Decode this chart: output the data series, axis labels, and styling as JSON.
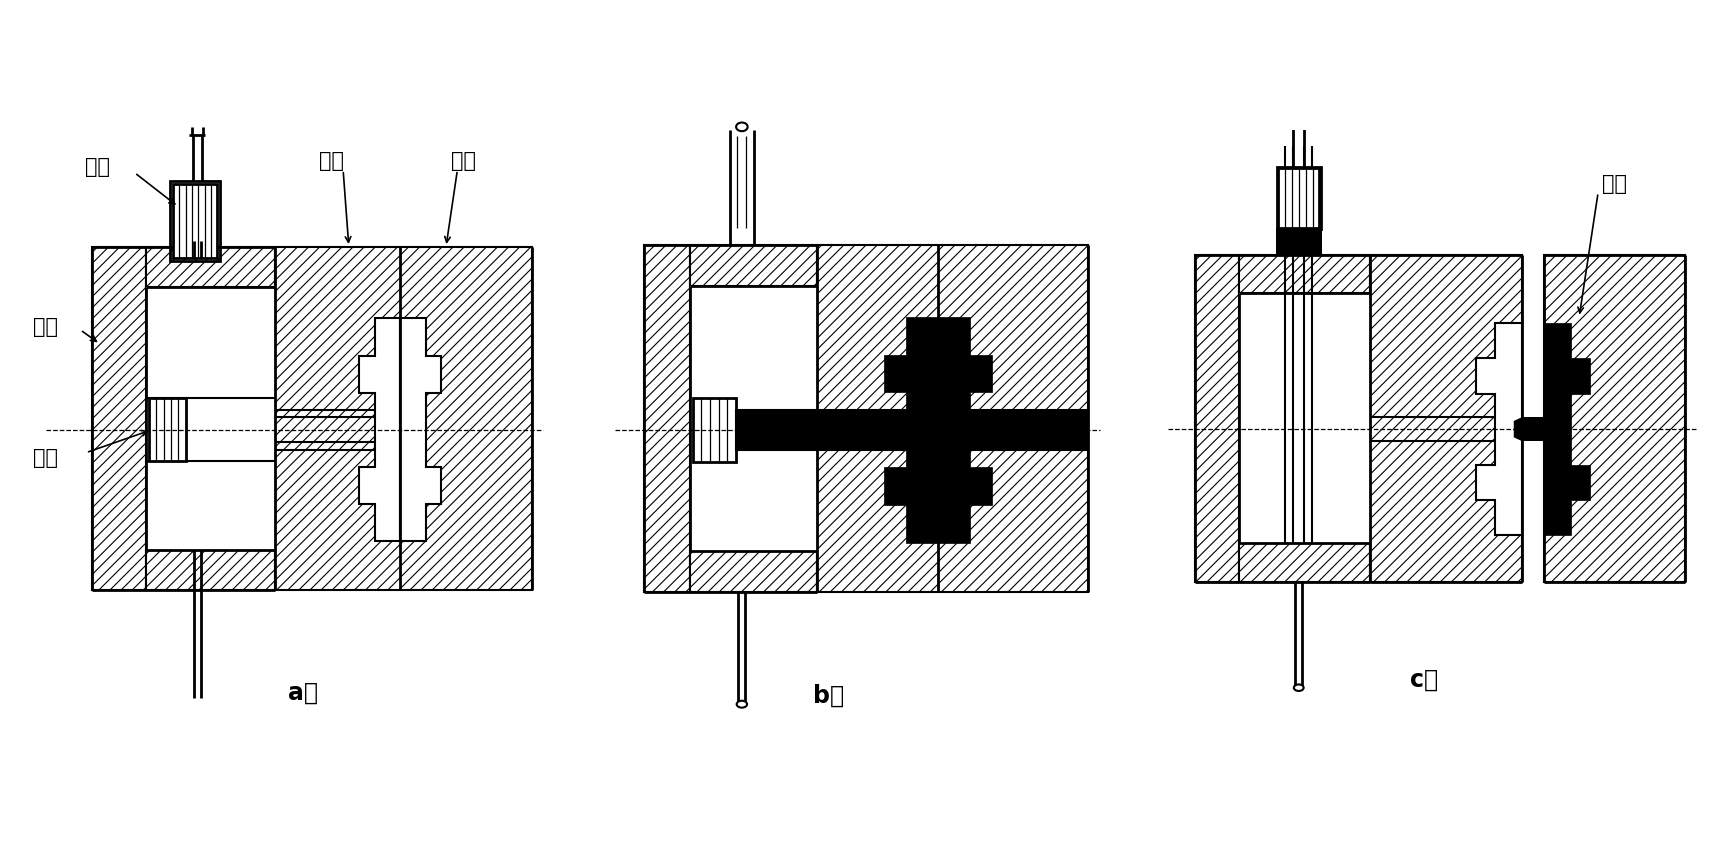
{
  "background_color": "#ffffff",
  "label_a": "a）",
  "label_b": "b）",
  "label_c": "c）",
  "label_huosai_top": "活塞",
  "label_yashi": "压室",
  "label_huosai_mid": "活塞",
  "label_dingxing": "定型",
  "label_dongxing": "动型",
  "label_zhujian": "铸件",
  "fontsize_label": 15,
  "fontsize_sublabel": 17
}
